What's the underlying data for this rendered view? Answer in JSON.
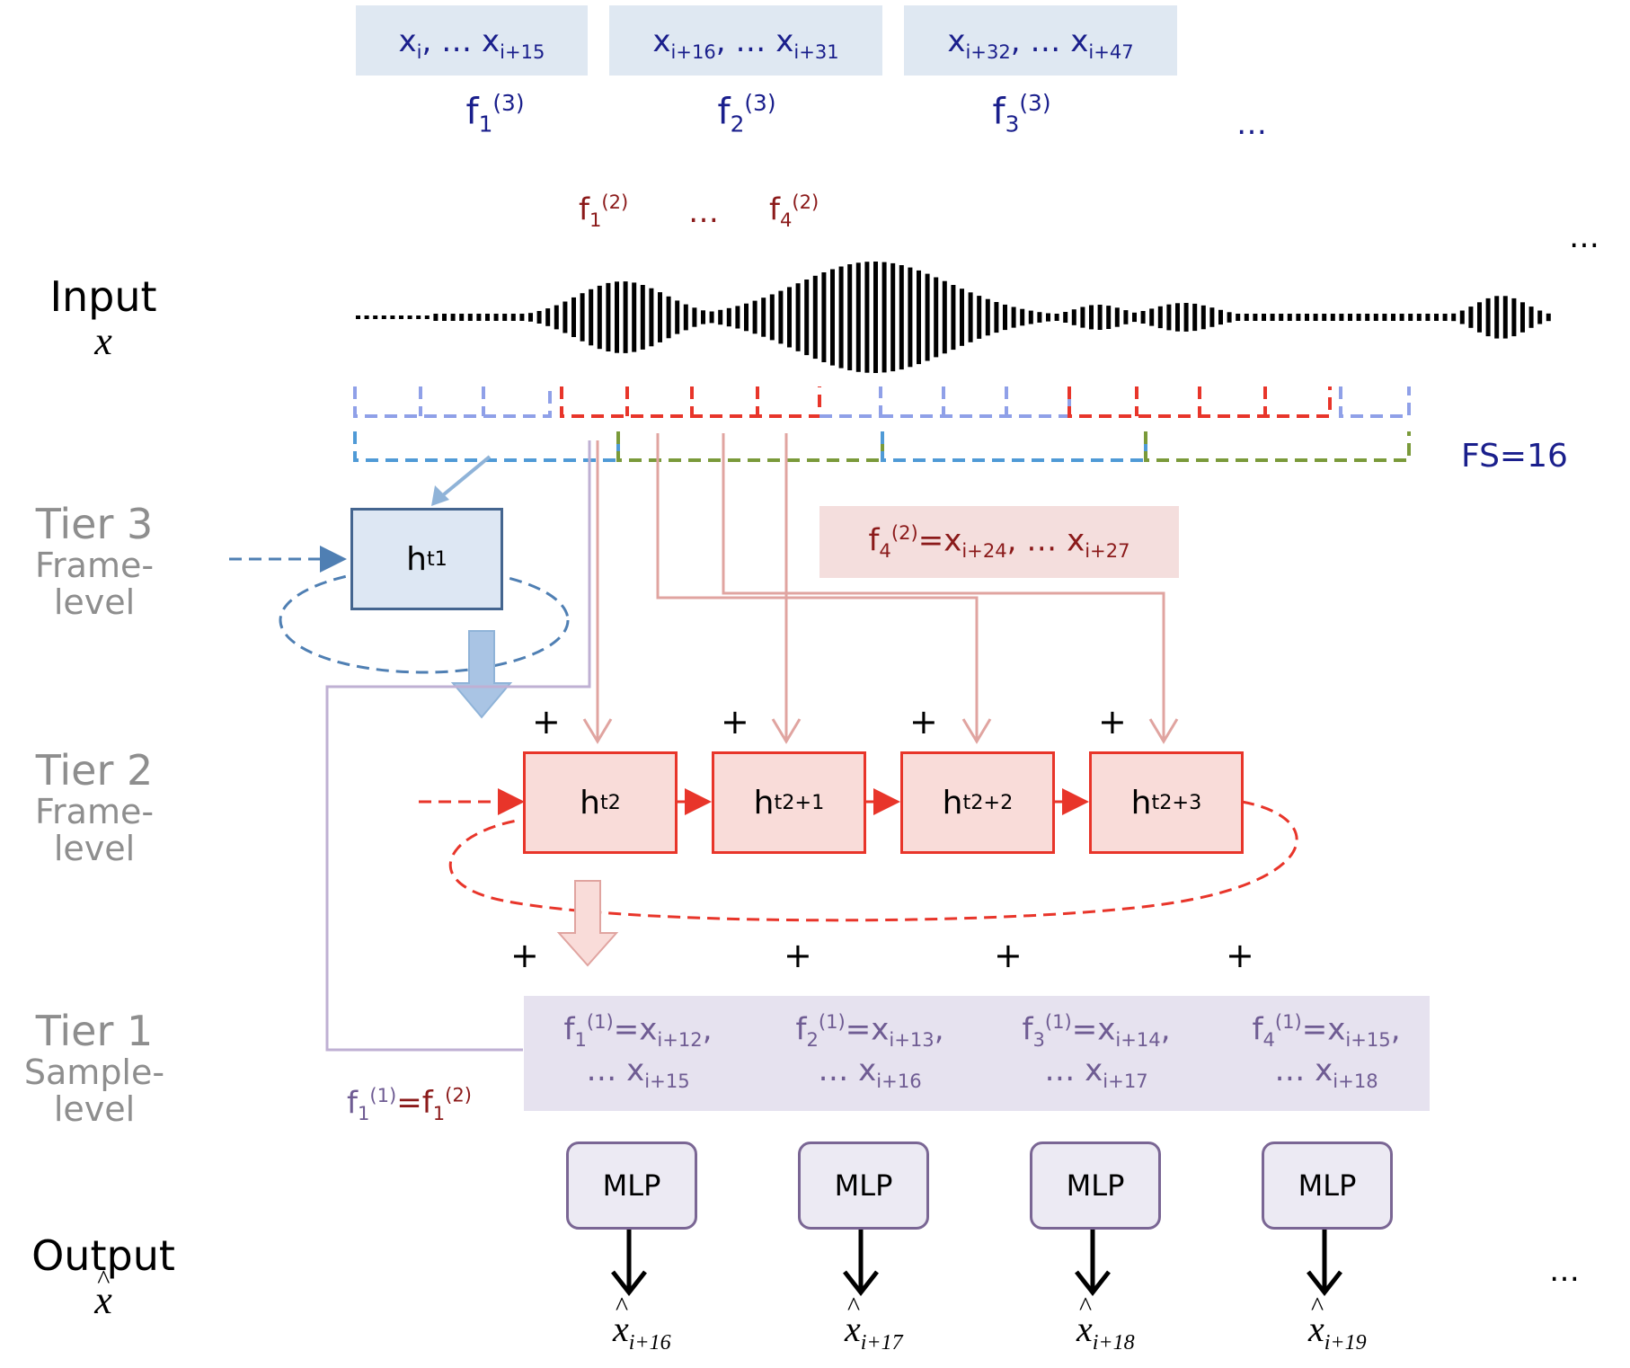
{
  "rows": {
    "input": {
      "label": "Input",
      "var": "x"
    },
    "tier3": {
      "label": "Tier 3",
      "sub1": "Frame-",
      "sub2": "level"
    },
    "tier2": {
      "label": "Tier 2",
      "sub1": "Frame-",
      "sub2": "level"
    },
    "tier1": {
      "label": "Tier 1",
      "sub1": "Sample-",
      "sub2": "level"
    },
    "output": {
      "label": "Output",
      "var": "x"
    }
  },
  "tier3_frames": [
    {
      "a": "x",
      "a_sub": "i",
      "sep": ", … ",
      "b": "x",
      "b_sub": "i+15",
      "f": "f",
      "f_sub": "1",
      "f_sup": "(3)"
    },
    {
      "a": "x",
      "a_sub": "i+16",
      "sep": ", … ",
      "b": "x",
      "b_sub": "i+31",
      "f": "f",
      "f_sub": "2",
      "f_sup": "(3)"
    },
    {
      "a": "x",
      "a_sub": "i+32",
      "sep": ", … ",
      "b": "x",
      "b_sub": "i+47",
      "f": "f",
      "f_sub": "3",
      "f_sup": "(3)"
    }
  ],
  "tier3_ellipsis": "…",
  "tier2_labels": {
    "first": {
      "f": "f",
      "sub": "1",
      "sup": "(2)"
    },
    "mid": "…",
    "last": {
      "f": "f",
      "sub": "4",
      "sup": "(2)"
    }
  },
  "top_right_ellipsis": "…",
  "fs_label": "FS=16",
  "f4_note": {
    "f": "f",
    "sub": "4",
    "sup": "(2)",
    "eq": "=x",
    "a_sub": "i+24",
    "sep": ", … x",
    "b_sub": "i+27"
  },
  "tier3_state": {
    "h": "h",
    "sub": "t1"
  },
  "tier2_states": [
    {
      "h": "h",
      "sub": "t2"
    },
    {
      "h": "h",
      "sub": "t2+1"
    },
    {
      "h": "h",
      "sub": "t2+2"
    },
    {
      "h": "h",
      "sub": "t2+3"
    }
  ],
  "plus": "+",
  "tier1_frames": [
    {
      "f": "f",
      "sub": "1",
      "sup": "(1)",
      "eq": "=x",
      "a_sub": "i+12",
      "tail": ",",
      "line2": "… x",
      "b_sub": "i+15"
    },
    {
      "f": "f",
      "sub": "2",
      "sup": "(1)",
      "eq": "=x",
      "a_sub": "i+13",
      "tail": ",",
      "line2": "… x",
      "b_sub": "i+16"
    },
    {
      "f": "f",
      "sub": "3",
      "sup": "(1)",
      "eq": "=x",
      "a_sub": "i+14",
      "tail": ",",
      "line2": "… x",
      "b_sub": "i+17"
    },
    {
      "f": "f",
      "sub": "4",
      "sup": "(1)",
      "eq": "=x",
      "a_sub": "i+15",
      "tail": ",",
      "line2": "… x",
      "b_sub": "i+18"
    }
  ],
  "f1_note": {
    "f": "f",
    "sub": "1",
    "sup": "(1)",
    "eq": "=f",
    "sub2": "1",
    "sup2": "(2)"
  },
  "mlp_label": "MLP",
  "outputs": [
    {
      "x": "x",
      "sub": "i+16"
    },
    {
      "x": "x",
      "sub": "i+17"
    },
    {
      "x": "x",
      "sub": "i+18"
    },
    {
      "x": "x",
      "sub": "i+19"
    }
  ],
  "output_ellipsis": "…",
  "colors": {
    "tier3": "#4f7fb3",
    "tier3_light": "#8fa0e8",
    "tier2": "#e8352a",
    "tier2_arrow": "#e0a4a0",
    "green": "#7a9a3a",
    "tier1": "#bfb0d3",
    "navy": "#1a1f8c",
    "maroon": "#8b1a1a"
  }
}
